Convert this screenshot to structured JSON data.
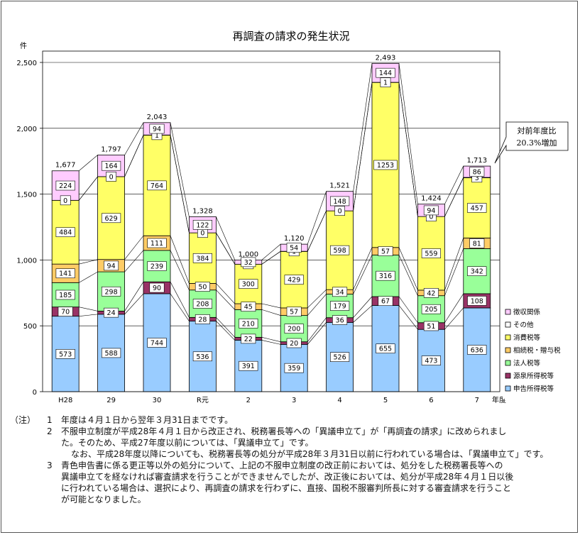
{
  "chart_data": {
    "type": "bar",
    "stacked": true,
    "title": "再調査の請求の発生状況",
    "ylabel": "件",
    "xlabel": "年度",
    "ylim": [
      0,
      2500
    ],
    "yticks": [
      0,
      500,
      1000,
      1500,
      2000,
      2500
    ],
    "ytick_labels": [
      "0",
      "500",
      "1,000",
      "1,500",
      "2,000",
      "2,500"
    ],
    "grid": true,
    "legend_position": "right",
    "categories": [
      "H28",
      "29",
      "30",
      "R元",
      "2",
      "3",
      "4",
      "5",
      "6",
      "7"
    ],
    "totals": [
      1677,
      1797,
      2043,
      1328,
      1000,
      1120,
      1521,
      2493,
      1424,
      1713
    ],
    "total_labels": [
      "1,677",
      "1,797",
      "2,043",
      "1,328",
      "1,000",
      "1,120",
      "1,521",
      "2,493",
      "1,424",
      "1,713"
    ],
    "series": [
      {
        "name": "申告所得税等",
        "color": "#99CCFF",
        "values": [
          573,
          588,
          744,
          536,
          391,
          359,
          526,
          655,
          473,
          636
        ]
      },
      {
        "name": "源泉所得税等",
        "color": "#993366",
        "values": [
          70,
          24,
          90,
          28,
          22,
          20,
          36,
          67,
          51,
          108
        ]
      },
      {
        "name": "法人税等",
        "color": "#99FF99",
        "values": [
          185,
          298,
          239,
          208,
          210,
          200,
          179,
          316,
          205,
          342
        ]
      },
      {
        "name": "相続税・贈与税",
        "color": "#FFCC66",
        "values": [
          141,
          94,
          111,
          50,
          45,
          57,
          34,
          57,
          42,
          81
        ]
      },
      {
        "name": "消費税等",
        "color": "#FFFF66",
        "values": [
          484,
          629,
          764,
          384,
          300,
          429,
          598,
          1253,
          559,
          457
        ]
      },
      {
        "name": "その他",
        "color": "#FFFFFF",
        "values": [
          0,
          0,
          1,
          0,
          0,
          1,
          0,
          1,
          0,
          3
        ]
      },
      {
        "name": "徴収関係",
        "color": "#FFCCFF",
        "values": [
          224,
          164,
          94,
          122,
          32,
          54,
          148,
          144,
          94,
          86
        ]
      }
    ],
    "annotation": {
      "line1": "対前年度比",
      "line2": "20.3%増加"
    }
  },
  "notes": {
    "head": "（注）",
    "items": [
      {
        "num": "1",
        "lines": [
          "年度は４月１日から翌年３月31日までです。"
        ]
      },
      {
        "num": "2",
        "lines": [
          "不服申立制度が平成28年４月１日から改正され、税務署長等への「異議申立て」が「再調査の請求」に改められまし",
          "た。そのため、平成27年度以前については、「異議申立て」です。",
          "なお、平成28年度以降についても、税務署長等の処分が平成28年３月31日以前に行われている場合は、「異議申立て」です。"
        ]
      },
      {
        "num": "3",
        "lines": [
          "青色申告書に係る更正等以外の処分について、上記の不服申立制度の改正前においては、処分をした税務署長等への",
          "異議申立てを経なければ審査請求を行うことができませんでしたが、改正後においては、処分が平成28年４月１日以後",
          "に行われている場合は、選択により、再調査の請求を行わずに、直接、国税不服審判所長に対する審査請求を行うこと",
          "が可能となりました。"
        ]
      }
    ]
  }
}
